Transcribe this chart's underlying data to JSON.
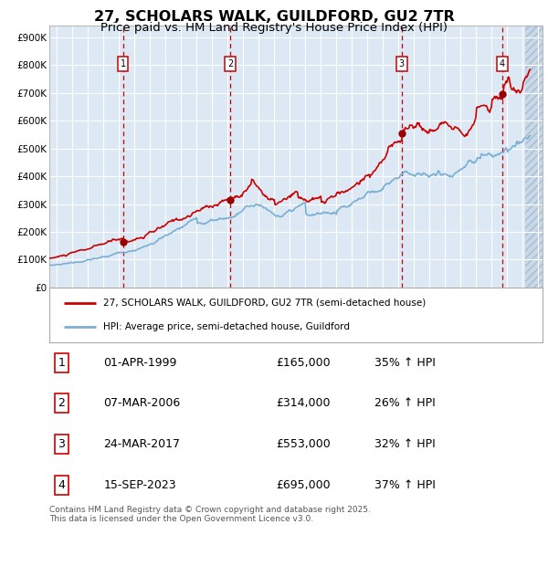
{
  "title": "27, SCHOLARS WALK, GUILDFORD, GU2 7TR",
  "subtitle": "Price paid vs. HM Land Registry's House Price Index (HPI)",
  "title_fontsize": 11.5,
  "subtitle_fontsize": 9.5,
  "plot_bg_color": "#dce9f5",
  "grid_color": "#ffffff",
  "red_line_color": "#cc0000",
  "blue_line_color": "#7bafd4",
  "marker_color": "#990000",
  "dashed_line_color": "#cc0000",
  "yticks": [
    0,
    100000,
    200000,
    300000,
    400000,
    500000,
    600000,
    700000,
    800000,
    900000
  ],
  "ytick_labels": [
    "£0",
    "£100K",
    "£200K",
    "£300K",
    "£400K",
    "£500K",
    "£600K",
    "£700K",
    "£800K",
    "£900K"
  ],
  "ylim": [
    0,
    940000
  ],
  "xlim_start": 1994.5,
  "xlim_end": 2026.3,
  "hatch_start": 2025.2,
  "sale_dates": [
    1999.25,
    2006.17,
    2017.22,
    2023.71
  ],
  "sale_prices": [
    165000,
    314000,
    553000,
    695000
  ],
  "sale_labels": [
    "1",
    "2",
    "3",
    "4"
  ],
  "legend_label_red": "27, SCHOLARS WALK, GUILDFORD, GU2 7TR (semi-detached house)",
  "legend_label_blue": "HPI: Average price, semi-detached house, Guildford",
  "table_entries": [
    {
      "num": "1",
      "date": "01-APR-1999",
      "price": "£165,000",
      "pct": "35% ↑ HPI"
    },
    {
      "num": "2",
      "date": "07-MAR-2006",
      "price": "£314,000",
      "pct": "26% ↑ HPI"
    },
    {
      "num": "3",
      "date": "24-MAR-2017",
      "price": "£553,000",
      "pct": "32% ↑ HPI"
    },
    {
      "num": "4",
      "date": "15-SEP-2023",
      "price": "£695,000",
      "pct": "37% ↑ HPI"
    }
  ],
  "footnote": "Contains HM Land Registry data © Crown copyright and database right 2025.\nThis data is licensed under the Open Government Licence v3.0."
}
